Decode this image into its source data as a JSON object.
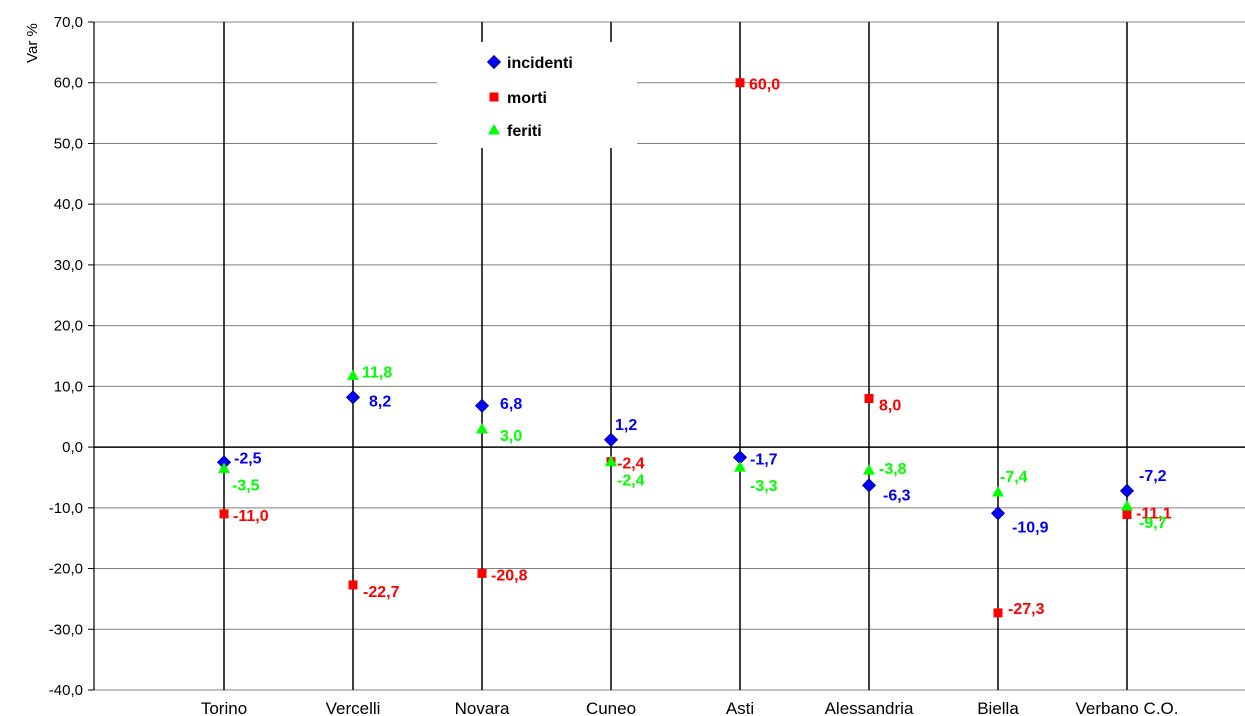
{
  "chart_data": {
    "type": "scatter",
    "ylabel": "Var %",
    "ylim": [
      -40,
      70
    ],
    "yticks": [
      -40,
      -30,
      -20,
      -10,
      0,
      10,
      20,
      30,
      40,
      50,
      60,
      70
    ],
    "ytick_labels": [
      "-40,0",
      "-30,0",
      "-20,0",
      "-10,0",
      "0,0",
      "10,0",
      "20,0",
      "30,0",
      "40,0",
      "50,0",
      "60,0",
      "70,0"
    ],
    "categories": [
      "Torino",
      "Vercelli",
      "Novara",
      "Cuneo",
      "Asti",
      "Alessandria",
      "Biella",
      "Verbano C.O."
    ],
    "grid": true,
    "legend_position": "top-center",
    "series": [
      {
        "name": "incidenti",
        "marker": "diamond",
        "color": "#0000FF",
        "values": [
          -2.5,
          8.2,
          6.8,
          1.2,
          -1.7,
          -6.3,
          -10.9,
          -7.2
        ],
        "labels": [
          "-2,5",
          "8,2",
          "6,8",
          "1,2",
          "-1,7",
          "-6,3",
          "-10,9",
          "-7,2"
        ]
      },
      {
        "name": "morti",
        "marker": "square",
        "color": "#FF0000",
        "values": [
          -11.0,
          -22.7,
          -20.8,
          -2.4,
          60.0,
          8.0,
          -27.3,
          -11.1
        ],
        "labels": [
          "-11,0",
          "-22,7",
          "-20,8",
          "-2,4",
          "60,0",
          "8,0",
          "-27,3",
          "-11,1"
        ]
      },
      {
        "name": "feriti",
        "marker": "triangle",
        "color": "#00FF00",
        "values": [
          -3.5,
          11.8,
          3.0,
          -2.4,
          -3.3,
          -3.8,
          -7.4,
          -9.7
        ],
        "labels": [
          "-3,5",
          "11,8",
          "3,0",
          "-2,4",
          "-3,3",
          "-3,8",
          "-7,4",
          "-9,7"
        ]
      }
    ]
  }
}
